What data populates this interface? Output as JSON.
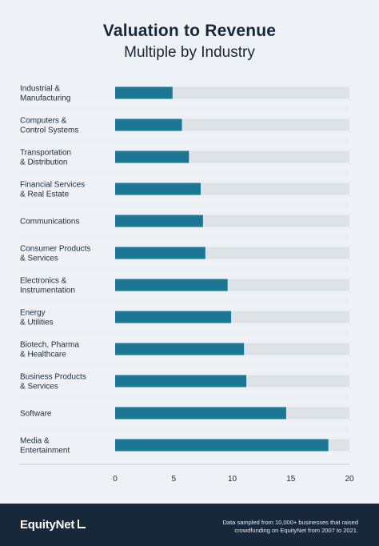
{
  "colors": {
    "bar": "#1a7693",
    "track": "#dde2e7",
    "background": "#eef1f5",
    "footer": "#17283b",
    "text": "#1d2b3a"
  },
  "footer": {
    "brand": "EquityNet",
    "brand_icon": "corner-bracket-icon",
    "note": "Data sampled from 10,000+ businesses that raised crowdfunding on EquityNet from 2007 to 2021."
  },
  "chart_data": {
    "type": "bar",
    "orientation": "horizontal",
    "title": "Valuation to Revenue",
    "subtitle": "Multiple by Industry",
    "categories": [
      [
        "Industrial &",
        "Manufacturing"
      ],
      [
        "Computers &",
        "Control Systems"
      ],
      [
        "Transportation",
        "& Distribution"
      ],
      [
        "Financial Services",
        "& Real Estate"
      ],
      [
        "Communications"
      ],
      [
        "Consumer Products",
        "& Services"
      ],
      [
        "Electronics &",
        "Instrumentation"
      ],
      [
        "Energy",
        "& Utilities"
      ],
      [
        "Biotech, Pharma",
        "& Healthcare"
      ],
      [
        "Business Products",
        "& Services"
      ],
      [
        "Software"
      ],
      [
        "Media &",
        "Entertainment"
      ]
    ],
    "values": [
      4.9,
      5.7,
      6.3,
      7.3,
      7.5,
      7.7,
      9.6,
      9.9,
      11.0,
      11.2,
      14.6,
      18.2
    ],
    "xlim": [
      0,
      20
    ],
    "xticks": [
      0,
      5,
      10,
      15,
      20
    ],
    "grid": false,
    "legend": "none"
  }
}
